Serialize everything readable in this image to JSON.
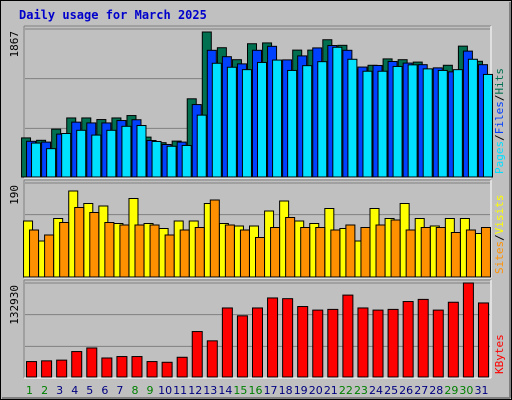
{
  "chart_data": {
    "type": "bar",
    "title": "Daily usage for March 2025",
    "categories": [
      "1",
      "2",
      "3",
      "4",
      "5",
      "6",
      "7",
      "8",
      "9",
      "10",
      "11",
      "12",
      "13",
      "14",
      "15",
      "16",
      "17",
      "18",
      "19",
      "20",
      "21",
      "22",
      "23",
      "24",
      "25",
      "26",
      "27",
      "28",
      "29",
      "30",
      "31"
    ],
    "weekend_days": [
      "1",
      "2",
      "8",
      "9",
      "15",
      "16",
      "22",
      "23",
      "29",
      "30"
    ],
    "colors": {
      "background": "#c0c0c0",
      "panel": "#c0c0c0",
      "title": "#0000cc",
      "hits": "#007050",
      "files": "#0040ff",
      "pages": "#00e0ff",
      "visits": "#ffff00",
      "sites": "#ff9000",
      "kbytes": "#ff0000",
      "weekday_label": "#000080",
      "weekend_label": "#008000"
    },
    "panels": [
      {
        "name": "requests",
        "ymax_label": "1867",
        "ylim": [
          0,
          1867
        ],
        "series": [
          {
            "name": "Hits",
            "color": "#007050",
            "values": [
              540,
              510,
              650,
              790,
              790,
              770,
              790,
              820,
              550,
              480,
              500,
              1030,
              1867,
              1670,
              1520,
              1720,
              1730,
              1500,
              1640,
              1640,
              1770,
              1700,
              1400,
              1450,
              1530,
              1520,
              1490,
              1400,
              1450,
              1690,
              1500
            ]
          },
          {
            "name": "Files",
            "color": "#0040ff",
            "values": [
              460,
              450,
              550,
              700,
              690,
              690,
              720,
              730,
              470,
              420,
              450,
              920,
              1600,
              1520,
              1430,
              1600,
              1650,
              1480,
              1530,
              1630,
              1660,
              1600,
              1390,
              1410,
              1460,
              1440,
              1420,
              1380,
              1330,
              1590,
              1420
            ]
          },
          {
            "name": "Pages",
            "color": "#00e0ff",
            "values": [
              400,
              330,
              520,
              560,
              500,
              560,
              610,
              620,
              420,
              360,
              370,
              750,
              1400,
              1350,
              1320,
              1410,
              1440,
              1310,
              1370,
              1420,
              1600,
              1450,
              1300,
              1300,
              1360,
              1380,
              1330,
              1310,
              1320,
              1450,
              1260
            ]
          }
        ],
        "legend": [
          "Pages",
          "Files",
          "Hits"
        ]
      },
      {
        "name": "visitors",
        "ymax_label": "190",
        "ylim": [
          0,
          190
        ],
        "series": [
          {
            "name": "Visits",
            "color": "#ffff00",
            "values": [
              120,
              80,
              125,
              180,
              155,
              150,
              115,
              165,
              115,
              105,
              120,
              120,
              155,
              115,
              110,
              110,
              140,
              160,
              120,
              115,
              145,
              105,
              80,
              145,
              125,
              155,
              125,
              110,
              125,
              125,
              95
            ]
          },
          {
            "name": "Sites",
            "color": "#ff9000",
            "values": [
              90,
              80,
              105,
              135,
              125,
              105,
              100,
              100,
              100,
              80,
              90,
              95,
              150,
              100,
              90,
              75,
              95,
              115,
              95,
              95,
              90,
              100,
              95,
              100,
              110,
              90,
              95,
              95,
              85,
              90,
              95
            ]
          }
        ],
        "legend": [
          "Sites",
          "Visits"
        ]
      },
      {
        "name": "traffic",
        "ymax_label": "132930",
        "ylim": [
          0,
          132930
        ],
        "series": [
          {
            "name": "KBytes",
            "color": "#ff0000",
            "values": [
              23000,
              24000,
              25000,
              37000,
              42000,
              28000,
              30000,
              30000,
              23000,
              22000,
              29000,
              65000,
              52000,
              98000,
              87000,
              98000,
              112000,
              111000,
              100000,
              95000,
              96000,
              116000,
              98000,
              95000,
              96000,
              107000,
              110000,
              95000,
              106000,
              132930,
              105000
            ]
          }
        ],
        "legend": [
          "KBytes"
        ]
      }
    ]
  }
}
